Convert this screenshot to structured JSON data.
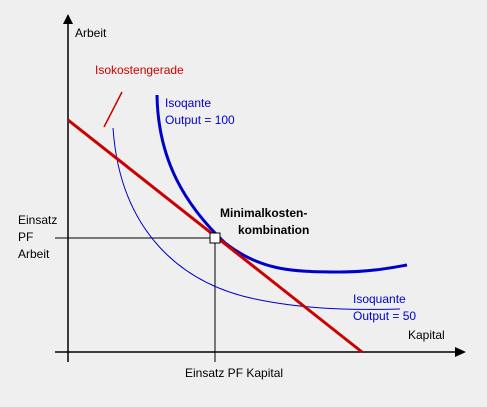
{
  "axes": {
    "y_label": "Arbeit",
    "x_label": "Kapital"
  },
  "labels": {
    "isocost": "Isokostengerade",
    "isoquant_100": [
      "Isoqante",
      "Output = 100"
    ],
    "isoquant_50": [
      "Isoquante",
      "Output = 50"
    ],
    "optimum": [
      "Minimalkosten-",
      "kombination"
    ],
    "labor_input": [
      "Einsatz",
      "PF",
      "Arbeit"
    ],
    "capital_input": "Einsatz PF Kapital"
  }
}
